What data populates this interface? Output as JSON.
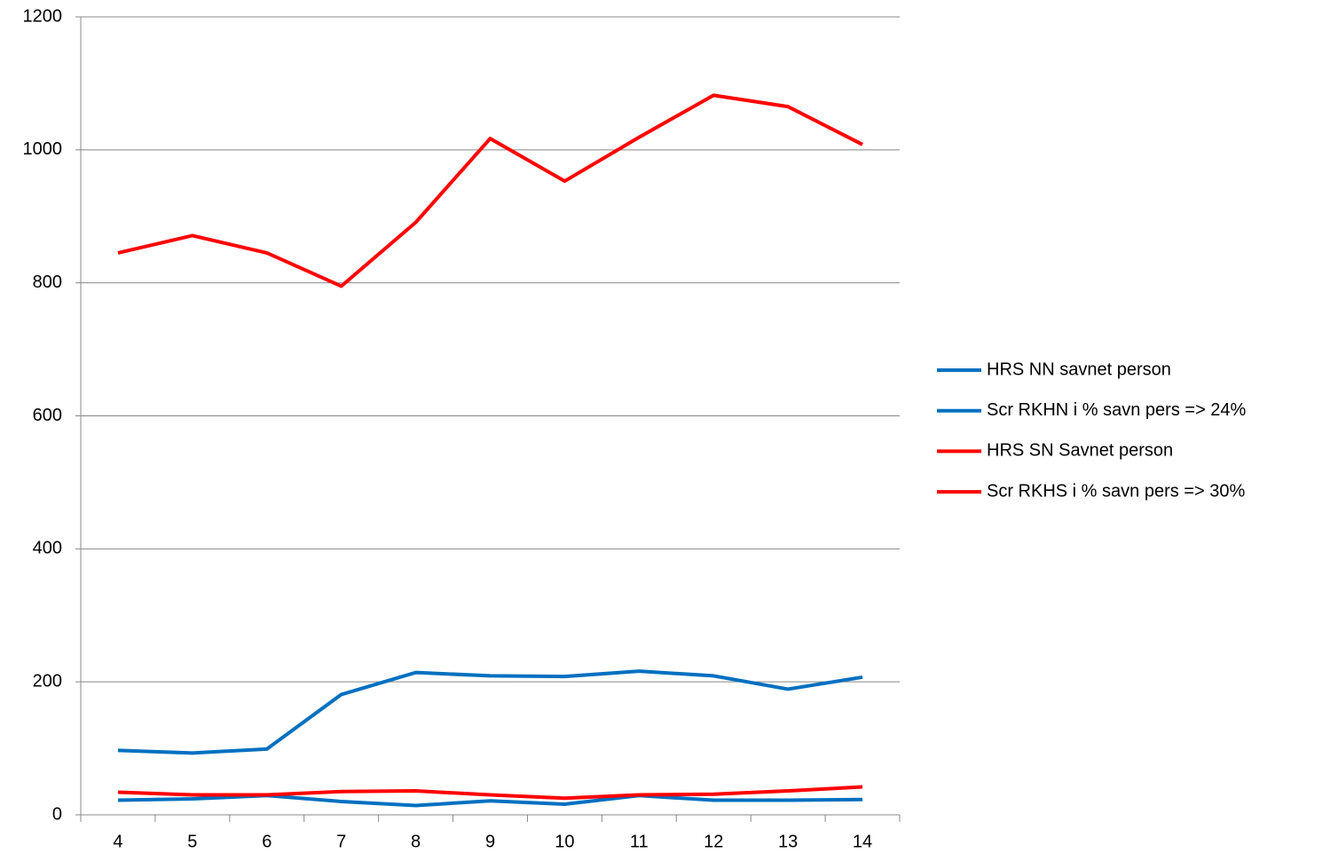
{
  "chart_data": {
    "type": "line",
    "categories": [
      4,
      5,
      6,
      7,
      8,
      9,
      10,
      11,
      12,
      13,
      14
    ],
    "series": [
      {
        "name": "HRS NN savnet person",
        "color": "#0070c0",
        "values": [
          97,
          93,
          99,
          181,
          214,
          209,
          208,
          216,
          209,
          189,
          207
        ]
      },
      {
        "name": "Scr RKHN i % savn pers => 24%",
        "color": "#0070c0",
        "values": [
          22,
          24,
          29,
          20,
          14,
          21,
          16,
          29,
          22,
          22,
          23
        ]
      },
      {
        "name": "HRS SN Savnet person",
        "color": "#ff0000",
        "values": [
          845,
          871,
          845,
          795,
          891,
          1017,
          953,
          1019,
          1082,
          1065,
          1008
        ]
      },
      {
        "name": "Scr RKHS i % savn pers => 30%",
        "color": "#ff0000",
        "values": [
          34,
          30,
          30,
          35,
          36,
          30,
          25,
          30,
          31,
          36,
          42
        ]
      }
    ],
    "ylim": [
      0,
      1200
    ],
    "yticks": [
      0,
      200,
      400,
      600,
      800,
      1000,
      1200
    ],
    "grid": true,
    "legend": "right"
  }
}
